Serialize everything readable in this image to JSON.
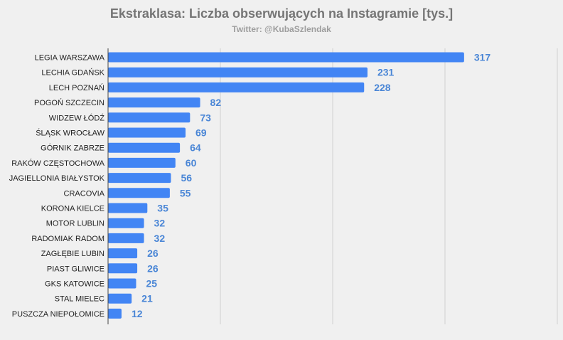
{
  "chart_data": {
    "type": "bar",
    "orientation": "horizontal",
    "title": "Ekstraklasa: Liczba obserwujących na Instagramie [tys.]",
    "subtitle": "Twitter: @KubaSzlendak",
    "xlabel": "",
    "ylabel": "",
    "xlim": [
      0,
      400
    ],
    "gridlines": [
      0,
      100,
      200,
      300,
      400
    ],
    "grid": true,
    "legend": "none",
    "bar_color": "#4285f4",
    "label_color": "#4a86d6",
    "categories": [
      "LEGIA WARSZAWA",
      "LECHIA GDAŃSK",
      "LECH POZNAŃ",
      "POGOŃ SZCZECIN",
      "WIDZEW ŁÓDŹ",
      "ŚLĄSK WROCŁAW",
      "GÓRNIK ZABRZE",
      "RAKÓW CZĘSTOCHOWA",
      "JAGIELLONIA BIAŁYSTOK",
      "CRACOVIA",
      "KORONA KIELCE",
      "MOTOR LUBLIN",
      "RADOMIAK RADOM",
      "ZAGŁĘBIE LUBIN",
      "PIAST GLIWICE",
      "GKS KATOWICE",
      "STAL MIELEC",
      "PUSZCZA NIEPOŁOMICE"
    ],
    "values": [
      317,
      231,
      228,
      82,
      73,
      69,
      64,
      60,
      56,
      55,
      35,
      32,
      32,
      26,
      26,
      25,
      21,
      12
    ]
  }
}
